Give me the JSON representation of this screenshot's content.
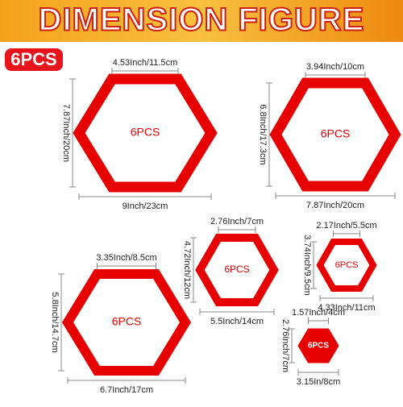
{
  "header": {
    "title": "DIMENSION FIGURE",
    "badge": "6PCS"
  },
  "hexagons": [
    {
      "label": "6PCS",
      "top": "4.53Inch/11.5cm",
      "side": "7.87Inch/20cm",
      "bottom": "9Inch/23cm"
    },
    {
      "label": "6PCS",
      "top": "3.94Inch/10cm",
      "side": "6.8Inch/17.3cm",
      "bottom": "7.87Inch/20cm"
    },
    {
      "label": "6PCS",
      "top": "3.35Inch/8.5cm",
      "side": "5.8Inch/14.7cm",
      "bottom": "6.7Inch/17cm"
    },
    {
      "label": "6PCS",
      "top": "2.76Inch/7cm",
      "side": "4.72Inch/12cm",
      "bottom": "5.5Inch/14cm"
    },
    {
      "label": "6PCS",
      "top": "2.17Inch/5.5cm",
      "side": "3.74Inch/9.5cm",
      "bottom": "4.33Inch/11cm"
    },
    {
      "label": "6PCS",
      "top": "1.57Inch/4cm",
      "side": "2.76Inch/7cm",
      "bottom": "3.15In/8cm"
    }
  ]
}
